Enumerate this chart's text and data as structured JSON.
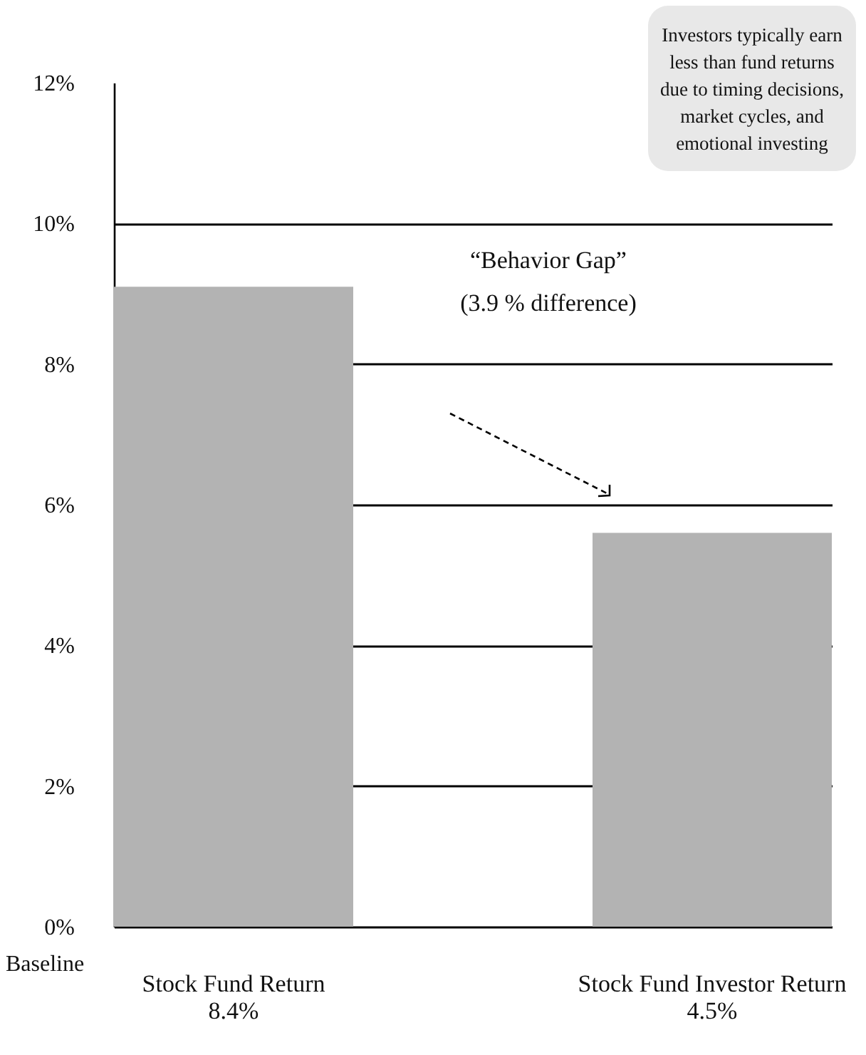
{
  "chart_data": {
    "type": "bar",
    "categories": [
      "Stock Fund Return\n8.4%",
      "Stock Fund Investor Return\n4.5%"
    ],
    "values": [
      9.1,
      5.6
    ],
    "color": "#b3b3b3",
    "ylim": [
      0,
      12
    ],
    "yticks": [
      {
        "value": 0,
        "label": "0%"
      },
      {
        "value": 2,
        "label": "2%"
      },
      {
        "value": 4,
        "label": "4%"
      },
      {
        "value": 6,
        "label": "6%"
      },
      {
        "value": 8,
        "label": "8%"
      },
      {
        "value": 10,
        "label": "10%"
      },
      {
        "value": 12,
        "label": "12%"
      }
    ],
    "grid": "y",
    "annotations": [
      "Investors typically earn less than fund returns due to timing decisions, market cycles, and emotional investing",
      "“Behavior Gap”\n(3.9 % difference)",
      "Baseline"
    ]
  }
}
